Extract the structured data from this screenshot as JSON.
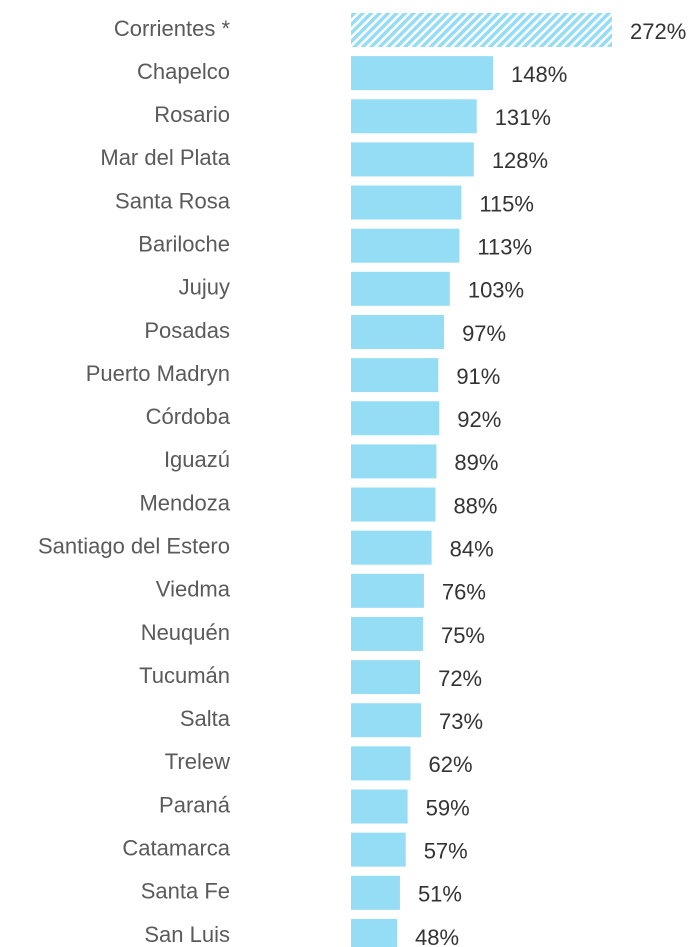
{
  "chart_data": {
    "type": "barh",
    "categories": [
      "Corrientes *",
      "Chapelco",
      "Rosario",
      "Mar del Plata",
      "Santa Rosa",
      "Bariloche",
      "Jujuy",
      "Posadas",
      "Puerto Madryn",
      "Córdoba",
      "Iguazú",
      "Mendoza",
      "Santiago del Estero",
      "Viedma",
      "Neuquén",
      "Tucumán",
      "Salta",
      "Trelew",
      "Paraná",
      "Catamarca",
      "Santa Fe",
      "San Luis"
    ],
    "values": [
      272,
      148,
      131,
      128,
      115,
      113,
      103,
      97,
      91,
      92,
      89,
      88,
      84,
      76,
      75,
      72,
      73,
      62,
      59,
      57,
      51,
      48
    ],
    "value_labels": [
      "272%",
      "148%",
      "131%",
      "128%",
      "115%",
      "113%",
      "103%",
      "97%",
      "91%",
      "92%",
      "89%",
      "88%",
      "84%",
      "76%",
      "75%",
      "72%",
      "73%",
      "62%",
      "59%",
      "57%",
      "51%",
      "48%"
    ],
    "hatched": [
      true,
      false,
      false,
      false,
      false,
      false,
      false,
      false,
      false,
      false,
      false,
      false,
      false,
      false,
      false,
      false,
      false,
      false,
      false,
      false,
      false,
      false
    ],
    "color": "#95dcf5"
  }
}
